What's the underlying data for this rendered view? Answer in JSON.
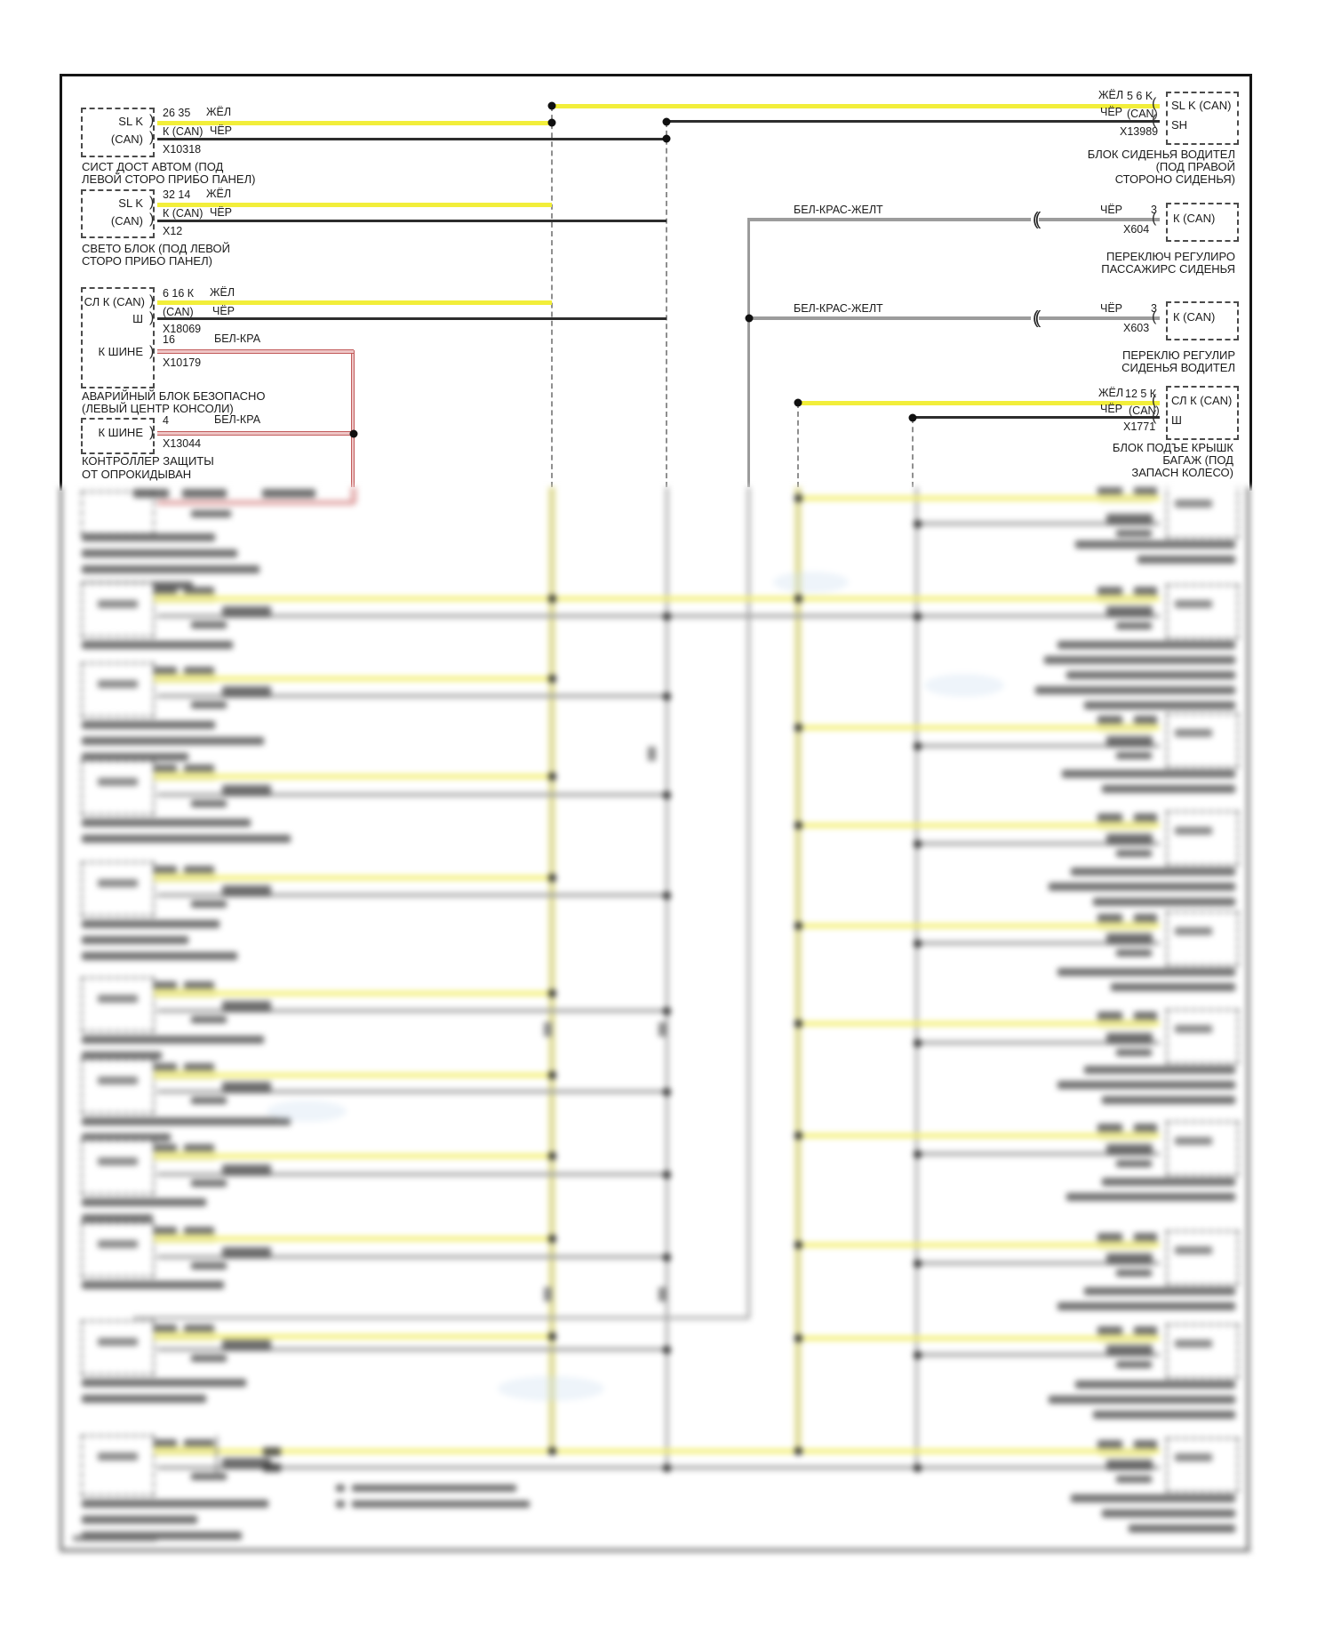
{
  "page": {
    "background": "#ffffff"
  },
  "colors": {
    "wire_yellow": "#f2ee3a",
    "wire_black": "#2d2d2d",
    "wire_gray": "#9c9c9c",
    "wire_red_fill": "#eec6c6",
    "wire_red_edge": "#c25b5b",
    "frame": "#151515",
    "text": "#1b1b1b"
  },
  "units_left": [
    {
      "name": "SL K",
      "name2": "(CAN)",
      "pins": [
        {
          "pin": "26 35",
          "color": "ЖЁЛ"
        },
        {
          "pin": "К (CAN)",
          "color": "ЧЁР"
        }
      ],
      "connector": "X10318",
      "label": [
        "СИСТ ДОСТ АВТОМ (ПОД",
        "ЛЕВОЙ СТОРО ПРИБО ПАНЕЛ)"
      ]
    },
    {
      "name": "SL K",
      "name2": "(CAN)",
      "pins": [
        {
          "pin": "32 14",
          "color": "ЖЁЛ"
        },
        {
          "pin": "К (CAN)",
          "color": "ЧЁР"
        }
      ],
      "connector": "X12",
      "label": [
        "СВЕТО БЛОК (ПОД ЛЕВОЙ",
        "СТОРО ПРИБО ПАНЕЛ)"
      ]
    },
    {
      "name": "СЛ К (CAN)",
      "name2": "Ш",
      "name3": "К ШИНЕ",
      "pins": [
        {
          "pin": "6 16 К",
          "color": "ЖЁЛ"
        },
        {
          "pin": "(CAN)",
          "color": "ЧЁР"
        },
        {
          "pin": "16",
          "color": "БЕЛ-КРА"
        }
      ],
      "connector": "X18069",
      "connector2": "X10179",
      "label": [
        "АВАРИЙНЫЙ БЛОК БЕЗОПАСНО",
        "(ЛЕВЫЙ ЦЕНТР КОНСОЛИ)"
      ]
    },
    {
      "name": "К ШИНЕ",
      "pins": [
        {
          "pin": "4",
          "color": "БЕЛ-КРА"
        }
      ],
      "connector": "X13044",
      "label": [
        "КОНТРОЛЛЕР ЗАЩИТЫ",
        "ОТ ОПРОКИДЫВАН"
      ]
    }
  ],
  "units_right": [
    {
      "name": "SL K (CAN)",
      "name2": "SH",
      "wires": [
        {
          "color": "ЖЁЛ",
          "pin": "5 6 K"
        },
        {
          "color": "ЧЁР",
          "pin": "(CAN)"
        }
      ],
      "connector": "X13989",
      "label": [
        "БЛОК СИДЕНЬЯ ВОДИТЕЛ",
        "(ПОД ПРАВОЙ",
        "СТОРОНО СИДЕНЬЯ)"
      ]
    },
    {
      "name": "К (CAN)",
      "wires": [
        {
          "color": "БЕЛ-КРАС-ЖЕЛТ"
        },
        {
          "color": "ЧЁР",
          "pin": "3"
        }
      ],
      "connector": "X604",
      "label": [
        "ПЕРЕКЛЮЧ РЕГУЛИРО",
        "ПАССАЖИРС СИДЕНЬЯ"
      ]
    },
    {
      "name": "К (CAN)",
      "wires": [
        {
          "color": "БЕЛ-КРАС-ЖЕЛТ"
        },
        {
          "color": "ЧЁР",
          "pin": "3"
        }
      ],
      "connector": "X603",
      "label": [
        "ПЕРЕКЛЮ РЕГУЛИР",
        "СИДЕНЬЯ ВОДИТЕЛ"
      ]
    },
    {
      "name": "СЛ К (CAN)",
      "name2": "Ш",
      "wires": [
        {
          "color": "ЖЁЛ",
          "pin": "12 5 К"
        },
        {
          "color": "ЧЁР",
          "pin": "(CAN)"
        }
      ],
      "connector": "X1771",
      "label": [
        "БЛОК ПОДЪЕ КРЫШК",
        "БАГАЖ (ПОД",
        "ЗАПАСН КОЛЕСО)"
      ]
    }
  ]
}
